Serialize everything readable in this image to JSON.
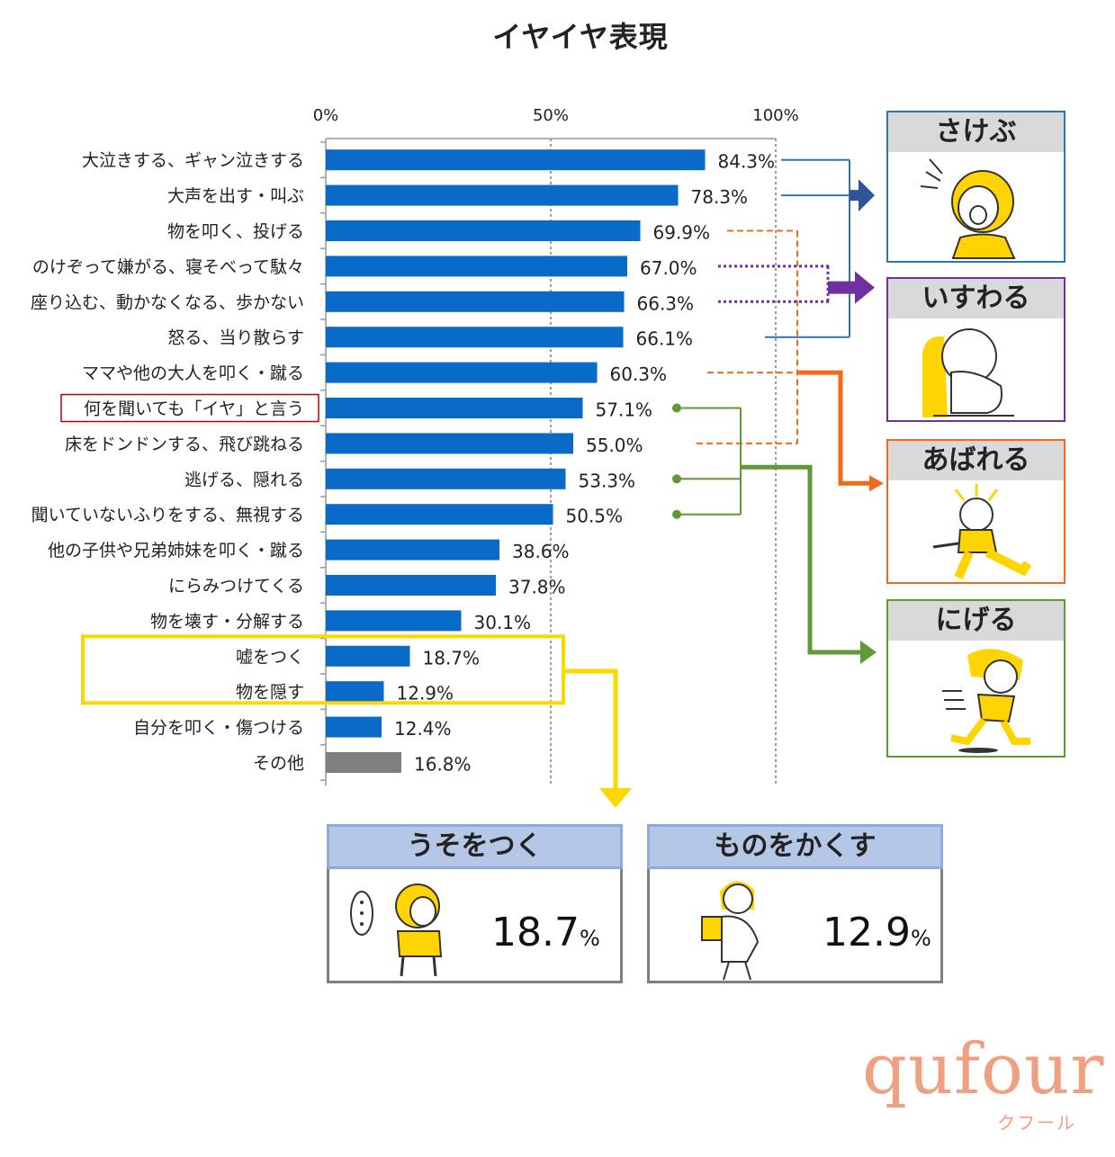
{
  "title": "イヤイヤ表現",
  "chart_data": {
    "type": "bar",
    "orientation": "horizontal",
    "title": "イヤイヤ表現",
    "x_ticks": [
      "0%",
      "50%",
      "100%"
    ],
    "xlim": [
      0,
      100
    ],
    "grid": true,
    "categories": [
      "大泣きする、ギャン泣きする",
      "大声を出す・叫ぶ",
      "物を叩く、投げる",
      "のけぞって嫌がる、寝そべって駄々",
      "座り込む、動かなくなる、歩かない",
      "怒る、当り散らす",
      "ママや他の大人を叩く・蹴る",
      "何を聞いても「イヤ」と言う",
      "床をドンドンする、飛び跳ねる",
      "逃げる、隠れる",
      "聞いていないふりをする、無視する",
      "他の子供や兄弟姉妹を叩く・蹴る",
      "にらみつけてくる",
      "物を壊す・分解する",
      "嘘をつく",
      "物を隠す",
      "自分を叩く・傷つける",
      "その他"
    ],
    "values": [
      84.3,
      78.3,
      69.9,
      67.0,
      66.3,
      66.1,
      60.3,
      57.1,
      55.0,
      53.3,
      50.5,
      38.6,
      37.8,
      30.1,
      18.7,
      12.9,
      12.4,
      16.8
    ],
    "value_labels": [
      "84.3%",
      "78.3%",
      "69.9%",
      "67.0%",
      "66.3%",
      "66.1%",
      "60.3%",
      "57.1%",
      "55.0%",
      "53.3%",
      "50.5%",
      "38.6%",
      "37.8%",
      "30.1%",
      "18.7%",
      "12.9%",
      "12.4%",
      "16.8%"
    ],
    "bar_color": "#0a6ac8",
    "other_bar_color": "#7f7f7f",
    "highlighted_category": "何を聞いても「イヤ」と言う"
  },
  "colors": {
    "sakebu": "#2e75b6",
    "isuwaru": "#7030a0",
    "abareru": "#f26b1d",
    "nigeru": "#609a38",
    "yellow": "#ffd700",
    "highlight_red": "#c00000"
  },
  "panels": {
    "sakebu": {
      "label": "さけぶ",
      "icon": "screaming-child-icon"
    },
    "isuwaru": {
      "label": "いすわる",
      "icon": "sitting-child-icon"
    },
    "abareru": {
      "label": "あばれる",
      "icon": "kicking-child-icon"
    },
    "nigeru": {
      "label": "にげる",
      "icon": "running-child-icon"
    }
  },
  "bottom_cards": {
    "uso": {
      "label": "うそをつく",
      "value": "18.7",
      "unit": "%",
      "icon": "thinking-child-icon"
    },
    "kakusu": {
      "label": "ものをかくす",
      "value": "12.9",
      "unit": "%",
      "icon": "hiding-child-icon"
    }
  },
  "brand": {
    "logo": "qufour",
    "sub": "クフール"
  }
}
